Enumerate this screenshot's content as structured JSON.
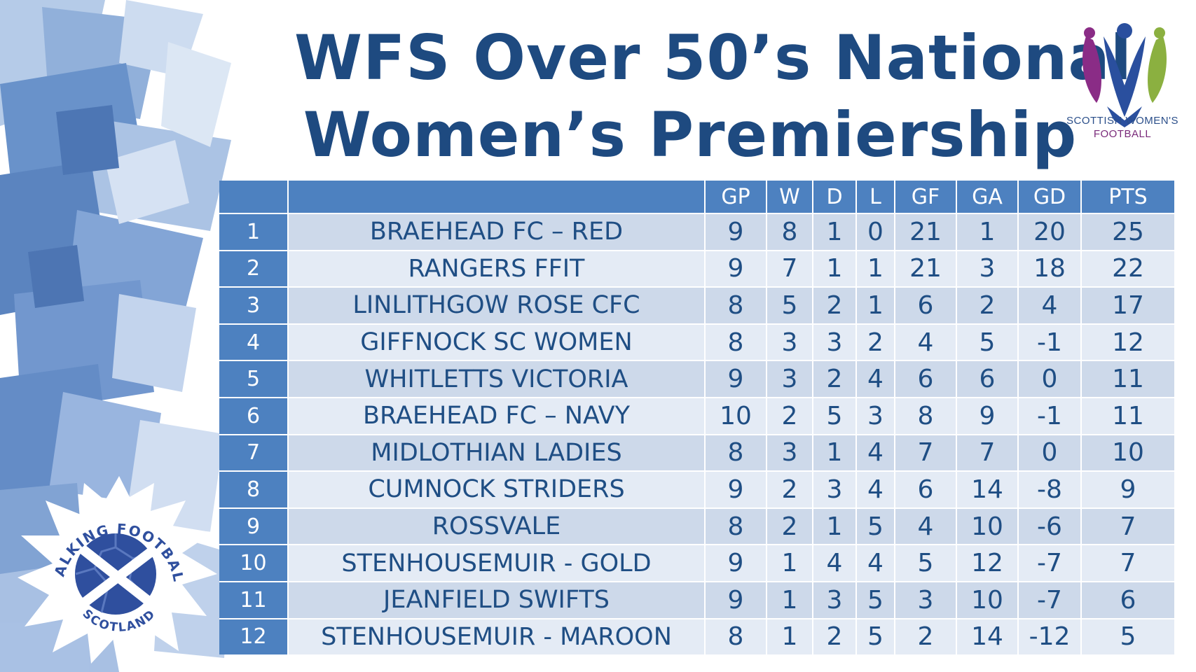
{
  "title": {
    "line1": "WFS Over 50’s National",
    "line2": "Women’s Premiership"
  },
  "logos": {
    "swf_line1": "SCOTTISH WOMEN'S",
    "swf_line2": "FOOTBALL",
    "wfs_top": "WALKING FOOTBALL",
    "wfs_bottom": "SCOTLAND"
  },
  "colors": {
    "navy": "#1f4e84",
    "header_blue": "#4d81c0",
    "row_dark": "#cdd9ea",
    "row_light": "#e4ebf5"
  },
  "table": {
    "headers": [
      "",
      "",
      "GP",
      "W",
      "D",
      "L",
      "GF",
      "GA",
      "GD",
      "PTS"
    ],
    "rows": [
      [
        "1",
        "BRAEHEAD FC – RED",
        "9",
        "8",
        "1",
        "0",
        "21",
        "1",
        "20",
        "25"
      ],
      [
        "2",
        "RANGERS FFIT",
        "9",
        "7",
        "1",
        "1",
        "21",
        "3",
        "18",
        "22"
      ],
      [
        "3",
        "LINLITHGOW ROSE CFC",
        "8",
        "5",
        "2",
        "1",
        "6",
        "2",
        "4",
        "17"
      ],
      [
        "4",
        "GIFFNOCK SC WOMEN",
        "8",
        "3",
        "3",
        "2",
        "4",
        "5",
        "-1",
        "12"
      ],
      [
        "5",
        "WHITLETTS VICTORIA",
        "9",
        "3",
        "2",
        "4",
        "6",
        "6",
        "0",
        "11"
      ],
      [
        "6",
        "BRAEHEAD FC – NAVY",
        "10",
        "2",
        "5",
        "3",
        "8",
        "9",
        "-1",
        "11"
      ],
      [
        "7",
        "MIDLOTHIAN LADIES",
        "8",
        "3",
        "1",
        "4",
        "7",
        "7",
        "0",
        "10"
      ],
      [
        "8",
        "CUMNOCK STRIDERS",
        "9",
        "2",
        "3",
        "4",
        "6",
        "14",
        "-8",
        "9"
      ],
      [
        "9",
        "ROSSVALE",
        "8",
        "2",
        "1",
        "5",
        "4",
        "10",
        "-6",
        "7"
      ],
      [
        "10",
        "STENHOUSEMUIR - GOLD",
        "9",
        "1",
        "4",
        "4",
        "5",
        "12",
        "-7",
        "7"
      ],
      [
        "11",
        "JEANFIELD SWIFTS",
        "9",
        "1",
        "3",
        "5",
        "3",
        "10",
        "-7",
        "6"
      ],
      [
        "12",
        "STENHOUSEMUIR - MAROON",
        "8",
        "1",
        "2",
        "5",
        "2",
        "14",
        "-12",
        "5"
      ]
    ]
  }
}
